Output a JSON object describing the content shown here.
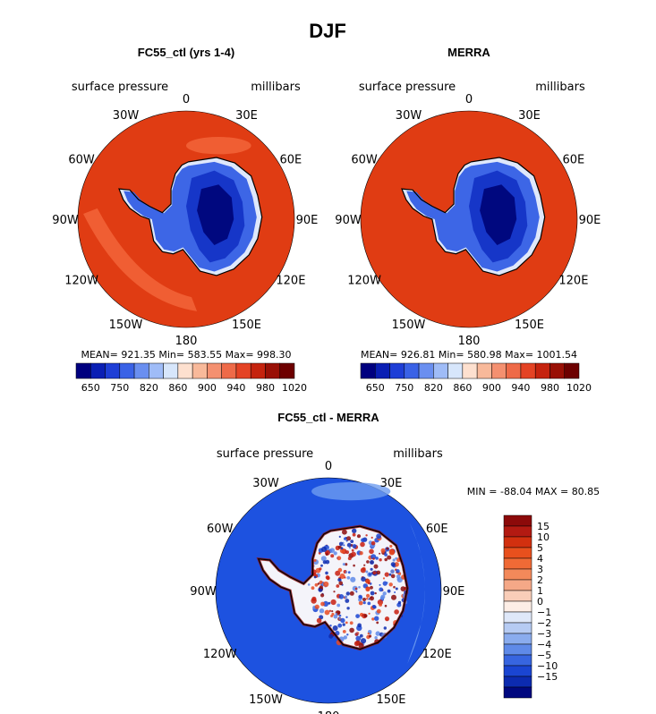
{
  "title": "DJF",
  "colors": {
    "ocean_model": "#e03c13",
    "ocean_model_band": "#f2643a",
    "ocean_obs": "#e03c13",
    "ocean_diff": "#1d52e0",
    "ocean_diff_light": "#6e9cf0",
    "coast": "#000000"
  },
  "panels": [
    {
      "id": "model",
      "title": "FC55_ctl (yrs 1-4)",
      "subtitle_left": "surface pressure",
      "subtitle_right": "millibars",
      "stats": "MEAN= 921.35   Min= 583.55   Max= 998.30"
    },
    {
      "id": "obs",
      "title": "MERRA",
      "subtitle_left": "surface pressure",
      "subtitle_right": "millibars",
      "stats": "MEAN= 926.81   Min= 580.98   Max= 1001.54"
    },
    {
      "id": "diff",
      "title": "FC55_ctl - MERRA",
      "subtitle_left": "surface pressure",
      "subtitle_right": "millibars",
      "stats": "MIN = -88.04  MAX =   80.85"
    }
  ],
  "longitude_labels": [
    "0",
    "30E",
    "60E",
    "90E",
    "120E",
    "150E",
    "180",
    "150W",
    "120W",
    "90W",
    "60W",
    "30W"
  ],
  "chart_data": [
    {
      "type": "heatmap",
      "title": "FC55_ctl (yrs 1-4)",
      "variable": "surface pressure",
      "units": "millibars",
      "projection": "south polar stereographic",
      "mean": 921.35,
      "min": 583.55,
      "max": 998.3,
      "colorbar": {
        "ticks": [
          "650",
          "750",
          "820",
          "860",
          "900",
          "940",
          "980",
          "1020"
        ],
        "colors": [
          "#00007f",
          "#0a1fb4",
          "#1e3ed6",
          "#3a62e6",
          "#6a8ff0",
          "#9fbcf7",
          "#d7e6fb",
          "#fde0cf",
          "#f8b99a",
          "#f49070",
          "#ee6a48",
          "#e44324",
          "#c5230e",
          "#991006",
          "#6d0000"
        ]
      }
    },
    {
      "type": "heatmap",
      "title": "MERRA",
      "variable": "surface pressure",
      "units": "millibars",
      "projection": "south polar stereographic",
      "mean": 926.81,
      "min": 580.98,
      "max": 1001.54,
      "colorbar": {
        "ticks": [
          "650",
          "750",
          "820",
          "860",
          "900",
          "940",
          "980",
          "1020"
        ],
        "colors": [
          "#00007f",
          "#0a1fb4",
          "#1e3ed6",
          "#3a62e6",
          "#6a8ff0",
          "#9fbcf7",
          "#d7e6fb",
          "#fde0cf",
          "#f8b99a",
          "#f49070",
          "#ee6a48",
          "#e44324",
          "#c5230e",
          "#991006",
          "#6d0000"
        ]
      }
    },
    {
      "type": "heatmap",
      "title": "FC55_ctl - MERRA",
      "variable": "surface pressure",
      "units": "millibars",
      "projection": "south polar stereographic",
      "min": -88.04,
      "max": 80.85,
      "colorbar": {
        "orientation": "vertical",
        "ticks": [
          "15",
          "10",
          "5",
          "4",
          "3",
          "2",
          "1",
          "0",
          "−1",
          "−2",
          "−3",
          "−4",
          "−5",
          "−10",
          "−15"
        ],
        "colors": [
          "#8c0a0a",
          "#b31a12",
          "#d2300f",
          "#e8501d",
          "#f06a36",
          "#f3895a",
          "#f5a887",
          "#f9cdb8",
          "#fdeee6",
          "#dfe8f9",
          "#b6cbf3",
          "#8aacee",
          "#5f8ae8",
          "#3765e0",
          "#1a45d2",
          "#0c2bb0",
          "#00087f"
        ]
      }
    }
  ]
}
